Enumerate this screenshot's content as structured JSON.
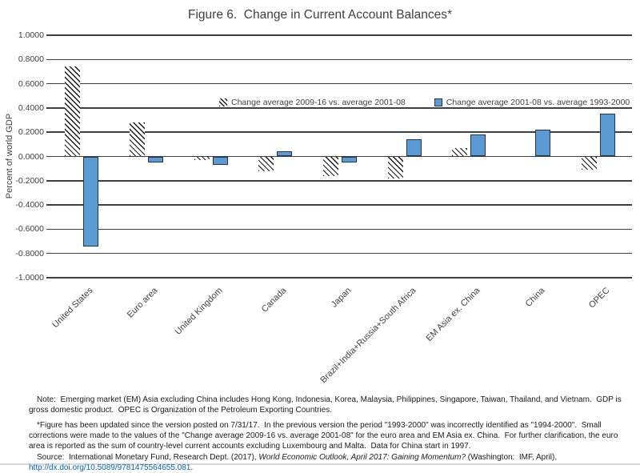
{
  "title": "Figure 6.  Change in Current Account Balances*",
  "chart_data": {
    "type": "bar",
    "title": "Figure 6.  Change in Current Account Balances*",
    "categories": [
      "United States",
      "Euro area",
      "United Kingdom",
      "Canada",
      "Japan",
      "Brazil+India+Russia+South Africa",
      "EM Asia ex. China",
      "China",
      "OPEC"
    ],
    "series": [
      {
        "name": "Change average 2009-16 vs. average 2001-08",
        "style": "hatched",
        "values": [
          0.74,
          0.28,
          -0.03,
          -0.12,
          -0.16,
          -0.18,
          0.07,
          0.0,
          -0.11
        ]
      },
      {
        "name": "Change average 2001-08 vs. average 1993-2000",
        "style": "solid-blue",
        "values": [
          -0.74,
          -0.05,
          -0.07,
          0.04,
          -0.05,
          0.14,
          0.18,
          0.22,
          0.35
        ]
      }
    ],
    "xlabel": "",
    "ylabel": "Percent of world GDP",
    "ylim": [
      -1.0,
      1.0
    ],
    "ytick_step": 0.2,
    "yticks": [
      "1.0000",
      "0.8000",
      "0.6000",
      "0.4000",
      "0.2000",
      "0.0000",
      "-0.2000",
      "-0.4000",
      "-0.6000",
      "-0.8000",
      "-1.0000"
    ],
    "grid": true,
    "legend_position": "top-center",
    "colors": {
      "bar_blue": "#5B9BD5",
      "bar_blue_border": "#24364A",
      "hatch_line": "#1a1a1a",
      "gridline": "#3f3f3f",
      "text": "#404040",
      "link": "#0563C1"
    }
  },
  "notes": {
    "note": "Note:  Emerging market (EM) Asia excluding China includes Hong Kong, Indonesia, Korea, Malaysia, Philippines, Singapore, Taiwan, Thailand, and Vietnam.  GDP is gross domestic product.  OPEC is Organization of the Petroleum Exporting Countries.",
    "figure_note": "*Figure has been updated since the version posted on 7/31/17.  In the previous version the period \"1993-2000\" was incorrectly identified as \"1994-2000\".  Small corrections were made to the values of the \"Change average 2009-16 vs. average 2001-08\" for the euro area and EM Asia ex. China.  For further clarification, the euro area is reported as the sum of country-level current accounts excluding Luxembourg and Malta.  Data for China start in 1997.",
    "source_prefix": "Source:  International Monetary Fund, Research Dept. (2017), ",
    "source_title_italic": "World Economic Outlook, April 2017: Gaining Momentum?",
    "source_middle": " (Washington:  IMF, April), ",
    "source_link": "http://dx.doi.org/10.5089/9781475564655.081",
    "source_end": "."
  }
}
